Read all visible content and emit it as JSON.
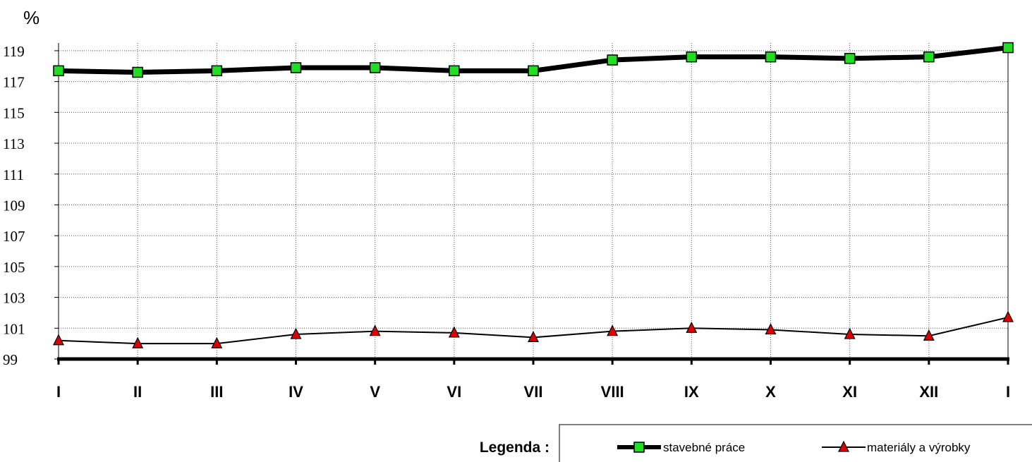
{
  "chart_data": {
    "type": "line",
    "ylabel": "%",
    "ylim": [
      99,
      119.5
    ],
    "yticks": [
      99,
      101,
      103,
      105,
      107,
      109,
      111,
      113,
      115,
      117,
      119
    ],
    "categories": [
      "I",
      "II",
      "III",
      "IV",
      "V",
      "VI",
      "VII",
      "VIII",
      "IX",
      "X",
      "XI",
      "XII",
      "I"
    ],
    "grid": true,
    "series": [
      {
        "name": "stavebné práce",
        "color": "#000000",
        "marker": "square",
        "marker_color": "#22dd22",
        "values": [
          117.7,
          117.6,
          117.7,
          117.9,
          117.9,
          117.7,
          117.7,
          118.4,
          118.6,
          118.6,
          118.5,
          118.6,
          119.2
        ]
      },
      {
        "name": "materiály a výrobky",
        "color": "#000000",
        "marker": "triangle",
        "marker_color": "#dd0000",
        "values": [
          100.2,
          100.0,
          100.0,
          100.6,
          100.8,
          100.7,
          100.4,
          100.8,
          101.0,
          100.9,
          100.6,
          100.5,
          101.7
        ]
      }
    ],
    "legend_title": "Legenda :",
    "legend_position": "bottom"
  }
}
